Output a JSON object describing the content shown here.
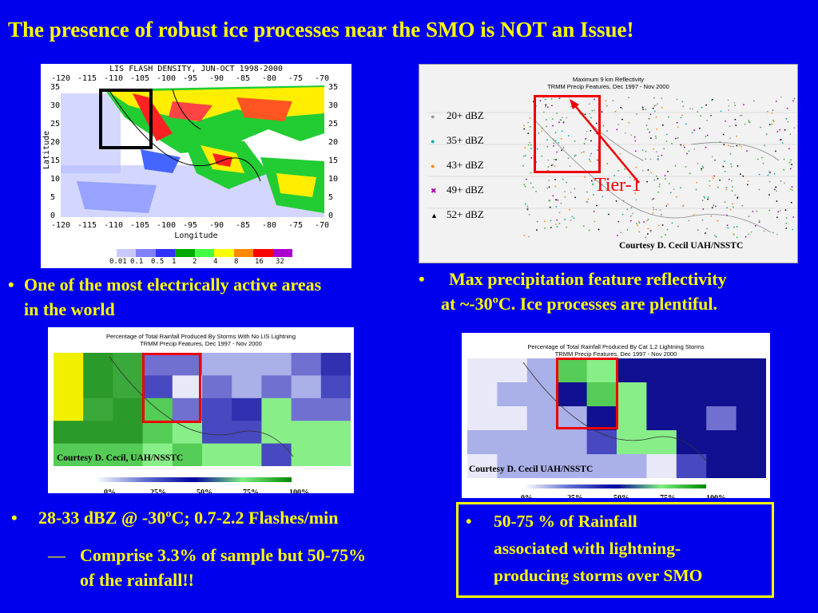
{
  "title": "The presence of robust ice processes near the SMO is NOT an Issue!",
  "lis": {
    "title": "LIS FLASH DENSITY, JUN-OCT 1998-2000",
    "x_ticks": [
      "-120",
      "-115",
      "-110",
      "-105",
      "-100",
      "-95",
      "-90",
      "-85",
      "-80",
      "-75",
      "-70"
    ],
    "y_ticks": [
      "35",
      "30",
      "25",
      "20",
      "15",
      "10",
      "5",
      "0"
    ],
    "ylabel": "Latitude",
    "xlabel": "Longitude",
    "scale": [
      "0.01",
      "0.1",
      "0.5",
      "1",
      "2",
      "4",
      "8",
      "16",
      "32"
    ]
  },
  "refl": {
    "title_line1": "Maximum 9 km Reflectivity",
    "title_line2": "TRMM Precip Features, Dec 1997 - Nov 2000",
    "legend": [
      {
        "label": "20+ dBZ",
        "color": "#999999",
        "glyph": "●"
      },
      {
        "label": "35+ dBZ",
        "color": "#00aaaa",
        "glyph": "●"
      },
      {
        "label": "43+ dBZ",
        "color": "#ff8800",
        "glyph": "●"
      },
      {
        "label": "49+ dBZ",
        "color": "#aa00aa",
        "glyph": "✖"
      },
      {
        "label": "52+ dBZ",
        "color": "#000000",
        "glyph": "▲"
      }
    ],
    "tier_label": "Tier-1",
    "courtesy": "Courtesy D. Cecil UAH/NSSTC"
  },
  "bullet1": {
    "marker": "•",
    "text_line1": "One of the most electrically active areas",
    "text_line2": "in the world"
  },
  "bullet2": {
    "marker": "•",
    "text_line1": "Max precipitation feature reflectivity",
    "text_line2": "at ~-30ºC.  Ice processes are plentiful."
  },
  "nolis": {
    "title_line1": "Percentage of Total Rainfall Produced By Storms With No LIS Lightning",
    "title_line2": "TRMM Precip Features, Dec 1997 - Nov 2000",
    "courtesy": "Courtesy D. Cecil, UAH/NSSTC",
    "scale": [
      "0%",
      "25%",
      "50%",
      "75%",
      "100%"
    ]
  },
  "cat12": {
    "title_line1": "Percentage of Total Rainfall Produced By Cat 1,2 Lightning Storms",
    "title_line2": "TRMM Precip Features, Dec 1997 - Nov 2000",
    "courtesy": "Courtesy D. Cecil UAH/NSSTC",
    "scale": [
      "0%",
      "25%",
      "50%",
      "75%",
      "100%"
    ]
  },
  "bullet3": {
    "marker": "•",
    "text": "28-33 dBZ @ -30ºC;  0.7-2.2 Flashes/min"
  },
  "sub3": {
    "marker": "—",
    "text_line1": "Comprise 3.3% of sample but 50-75%",
    "text_line2": "of the rainfall!!"
  },
  "bullet4": {
    "marker": "•",
    "text_line1": "50-75 % of Rainfall",
    "text_line2": "associated with lightning-",
    "text_line3": "producing storms over SMO"
  }
}
